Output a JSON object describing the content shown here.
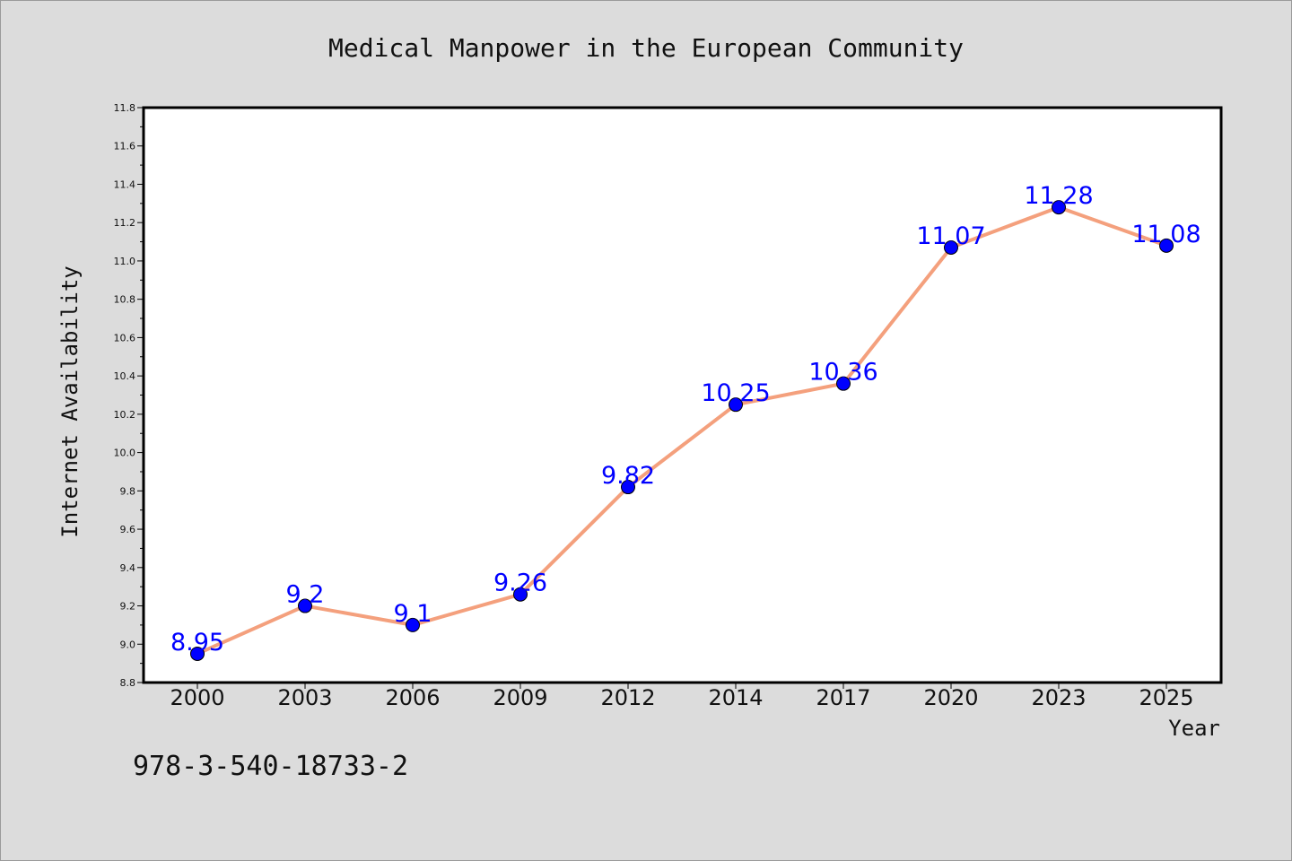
{
  "chart_data": {
    "type": "line",
    "title": "Medical Manpower in the European Community",
    "xlabel": "Year",
    "ylabel": "Internet Availability",
    "categories": [
      "2000",
      "2003",
      "2006",
      "2009",
      "2012",
      "2014",
      "2017",
      "2020",
      "2023",
      "2025"
    ],
    "series": [
      {
        "values": [
          8.95,
          9.2,
          9.1,
          9.26,
          9.82,
          10.25,
          10.36,
          11.07,
          11.28,
          11.08
        ],
        "labels": [
          "8.95",
          "9.2",
          "9.1",
          "9.26",
          "9.82",
          "10.25",
          "10.36",
          "11.07",
          "11.28",
          "11.08"
        ]
      }
    ],
    "ylim": [
      8.8,
      11.8
    ],
    "yticks": [
      "8.8",
      "9.0",
      "9.2",
      "9.4",
      "9.6",
      "9.8",
      "10.0",
      "10.2",
      "10.4",
      "10.6",
      "10.8",
      "11.0",
      "11.2",
      "11.4",
      "11.6",
      "11.8"
    ],
    "grid": false,
    "line_color": "#f4a07d",
    "marker_color": "#0000ff",
    "label_color": "#0000ff",
    "annotation": "978-3-540-18733-2"
  }
}
